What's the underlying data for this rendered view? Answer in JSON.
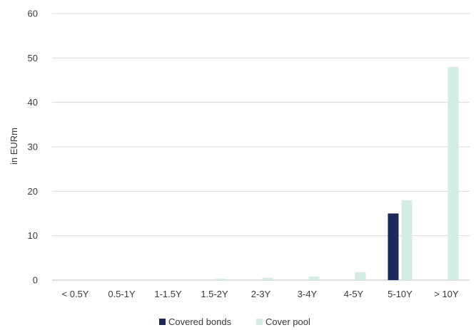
{
  "chart_data": {
    "type": "bar",
    "title": "",
    "xlabel": "",
    "ylabel": "in EURm",
    "ylim": [
      0,
      60
    ],
    "yticks": [
      0,
      10,
      20,
      30,
      40,
      50,
      60
    ],
    "grid": true,
    "legend_position": "bottom",
    "categories": [
      "< 0.5Y",
      "0.5-1Y",
      "1-1.5Y",
      "1.5-2Y",
      "2-3Y",
      "3-4Y",
      "4-5Y",
      "5-10Y",
      "> 10Y"
    ],
    "series": [
      {
        "name": "Covered bonds",
        "color": "#1f2a5c",
        "values": [
          0,
          0,
          0,
          0,
          0,
          0,
          0,
          15,
          0
        ]
      },
      {
        "name": "Cover pool",
        "color": "#d5ebe6",
        "values": [
          0,
          0,
          0,
          0.3,
          0.5,
          0.8,
          1.8,
          18,
          48
        ]
      }
    ]
  }
}
